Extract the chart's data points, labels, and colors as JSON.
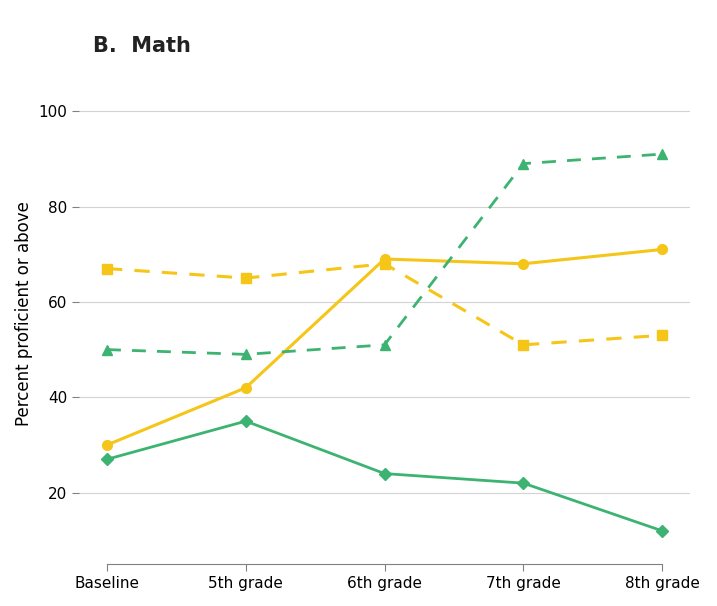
{
  "title": "B.  Math",
  "ylabel": "Percent proficient or above",
  "x_labels": [
    "Baseline",
    "5th grade",
    "6th grade",
    "7th grade",
    "8th grade"
  ],
  "series": [
    {
      "name": "yellow_solid",
      "values": [
        30,
        42,
        69,
        68,
        71
      ],
      "color": "#F5C518",
      "linestyle": "solid",
      "marker": "o",
      "markersize": 7,
      "linewidth": 2.2
    },
    {
      "name": "green_solid",
      "values": [
        27,
        35,
        24,
        22,
        12
      ],
      "color": "#3CB371",
      "linestyle": "solid",
      "marker": "D",
      "markersize": 6,
      "linewidth": 2.0
    },
    {
      "name": "yellow_dashed",
      "values": [
        67,
        65,
        68,
        51,
        53
      ],
      "color": "#F5C518",
      "linestyle": "dashed",
      "marker": "s",
      "markersize": 7,
      "linewidth": 2.2
    },
    {
      "name": "green_dashed",
      "values": [
        50,
        49,
        51,
        89,
        91
      ],
      "color": "#3CB371",
      "linestyle": "dashed",
      "marker": "^",
      "markersize": 7,
      "linewidth": 2.0
    }
  ],
  "ylim": [
    5,
    110
  ],
  "yticks": [
    20,
    40,
    60,
    80,
    100
  ],
  "background_color": "#ffffff",
  "title_fontsize": 15,
  "label_fontsize": 12,
  "tick_fontsize": 11
}
